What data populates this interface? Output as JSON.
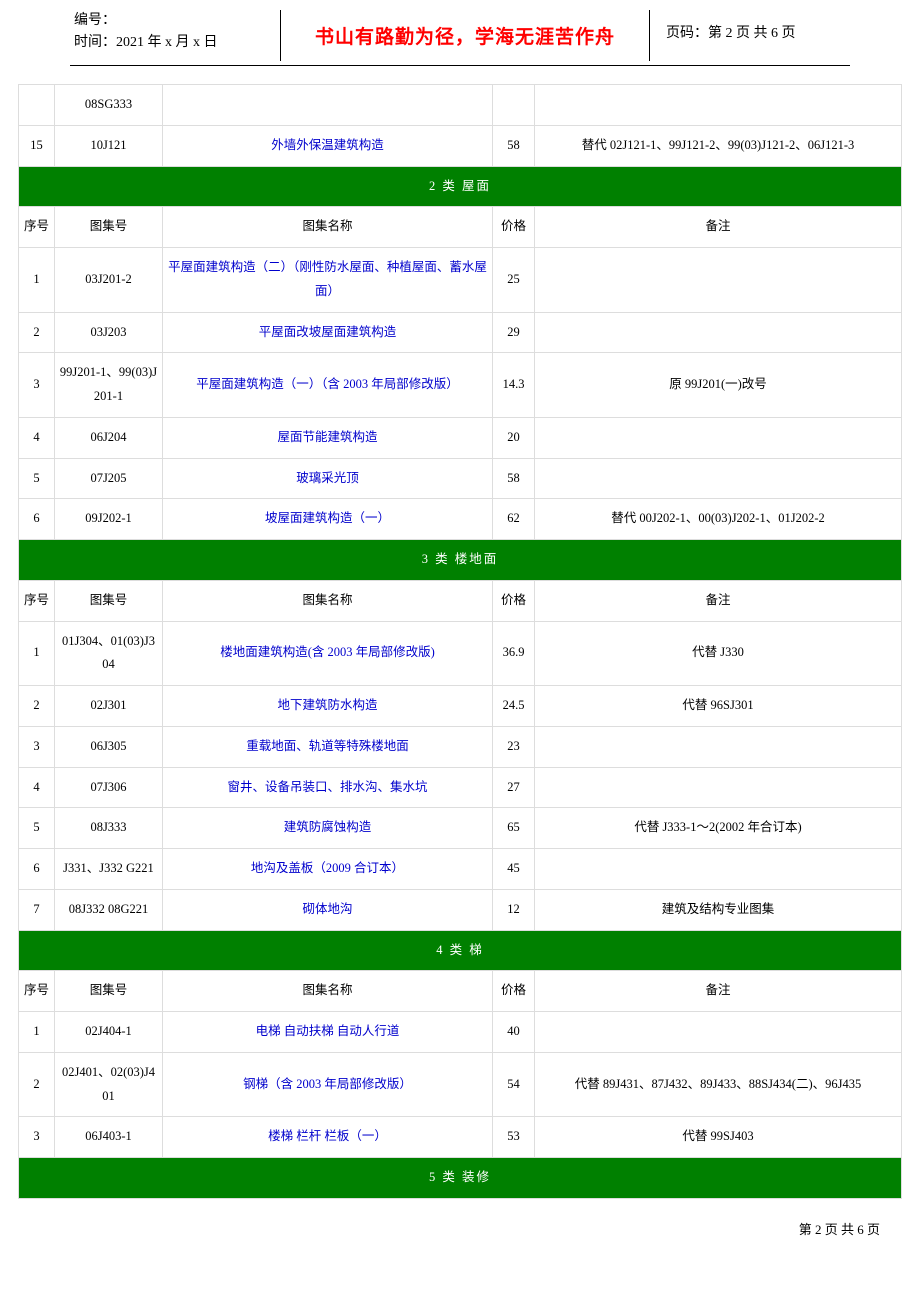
{
  "header": {
    "numberLabel": "编号：",
    "timeLabel": "时间：2021 年 x 月 x 日",
    "motto": "书山有路勤为径，学海无涯苦作舟",
    "pageLabel": "页码：第 2 页 共 6 页"
  },
  "columns": {
    "seq": "序号",
    "code": "图集号",
    "name": "图集名称",
    "price": "价格",
    "remark": "备注"
  },
  "preRows": [
    {
      "seq": "",
      "code": "08SG333",
      "name": "",
      "price": "",
      "remark": "",
      "link": false
    },
    {
      "seq": "15",
      "code": "10J121",
      "name": "外墙外保温建筑构造",
      "price": "58",
      "remark": "替代 02J121-1、99J121-2、99(03)J121-2、06J121-3",
      "link": true
    }
  ],
  "sections": [
    {
      "title": "2 类 屋面",
      "rows": [
        {
          "seq": "1",
          "code": "03J201-2",
          "name": "平屋面建筑构造（二）（刚性防水屋面、种植屋面、蓄水屋面）",
          "price": "25",
          "remark": "",
          "link": true
        },
        {
          "seq": "2",
          "code": "03J203",
          "name": "平屋面改坡屋面建筑构造",
          "price": "29",
          "remark": "",
          "link": true
        },
        {
          "seq": "3",
          "code": "99J201-1、99(03)J201-1",
          "name": "平屋面建筑构造（一）（含 2003 年局部修改版）",
          "price": "14.3",
          "remark": "原 99J201(一)改号",
          "link": true
        },
        {
          "seq": "4",
          "code": "06J204",
          "name": "屋面节能建筑构造",
          "price": "20",
          "remark": "",
          "link": true
        },
        {
          "seq": "5",
          "code": "07J205",
          "name": "玻璃采光顶",
          "price": "58",
          "remark": "",
          "link": true
        },
        {
          "seq": "6",
          "code": "09J202-1",
          "name": "坡屋面建筑构造（一）",
          "price": "62",
          "remark": "替代 00J202-1、00(03)J202-1、01J202-2",
          "link": true
        }
      ]
    },
    {
      "title": "3 类 楼地面",
      "rows": [
        {
          "seq": "1",
          "code": "01J304、01(03)J304",
          "name": "楼地面建筑构造(含 2003 年局部修改版)",
          "price": "36.9",
          "remark": "代替 J330",
          "link": true
        },
        {
          "seq": "2",
          "code": "02J301",
          "name": "地下建筑防水构造",
          "price": "24.5",
          "remark": "代替 96SJ301",
          "link": true
        },
        {
          "seq": "3",
          "code": "06J305",
          "name": "重载地面、轨道等特殊楼地面",
          "price": "23",
          "remark": "",
          "link": true
        },
        {
          "seq": "4",
          "code": "07J306",
          "name": "窗井、设备吊装口、排水沟、集水坑",
          "price": "27",
          "remark": "",
          "link": true
        },
        {
          "seq": "5",
          "code": "08J333",
          "name": "建筑防腐蚀构造",
          "price": "65",
          "remark": "代替 J333-1～2(2002 年合订本)",
          "link": true
        },
        {
          "seq": "6",
          "code": "J331、J332 G221",
          "name": "地沟及盖板（2009 合订本）",
          "price": "45",
          "remark": "",
          "link": true
        },
        {
          "seq": "7",
          "code": "08J332 08G221",
          "name": "砌体地沟",
          "price": "12",
          "remark": "建筑及结构专业图集",
          "link": true
        }
      ]
    },
    {
      "title": "4 类 梯",
      "rows": [
        {
          "seq": "1",
          "code": "02J404-1",
          "name": "电梯 自动扶梯 自动人行道",
          "price": "40",
          "remark": "",
          "link": true
        },
        {
          "seq": "2",
          "code": "02J401、02(03)J401",
          "name": "钢梯（含 2003 年局部修改版）",
          "price": "54",
          "remark": "代替 89J431、87J432、89J433、88SJ434(二)、96J435",
          "link": true
        },
        {
          "seq": "3",
          "code": "06J403-1",
          "name": "楼梯 栏杆 栏板（一）",
          "price": "53",
          "remark": "代替 99SJ403",
          "link": true
        }
      ]
    },
    {
      "title": "5 类 装修",
      "rows": []
    }
  ],
  "footer": "第 2 页 共 6 页",
  "style": {
    "link_color": "#0000cc",
    "category_bg": "#008000",
    "category_color": "#ffffff",
    "border_color": "#dddddd",
    "motto_color": "#ff0000",
    "body_bg": "#ffffff",
    "text_color": "#000000"
  }
}
